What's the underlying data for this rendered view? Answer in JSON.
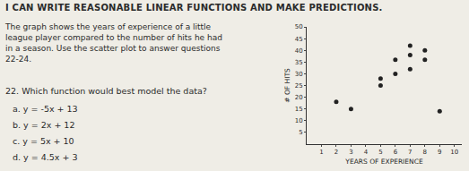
{
  "header": {
    "title": "I CAN WRITE REASONABLE LINEAR FUNCTIONS AND MAKE PREDICTIONS."
  },
  "instructions": "The graph shows the years of experience of a little league player compared to the number of hits he had in a season. Use the scatter plot to answer questions 22-24.",
  "question": {
    "text": "22. Which function would best model the data?",
    "options": [
      "a. y = -5x + 13",
      "b. y = 2x + 12",
      "c. y = 5x + 10",
      "d. y = 4.5x + 3"
    ]
  },
  "chart_data": {
    "type": "scatter",
    "x_label": "YEARS OF EXPERIENCE",
    "y_label": "# OF HITS",
    "x": [
      2,
      3,
      5,
      5,
      6,
      6,
      7,
      7,
      7,
      8,
      8,
      9
    ],
    "values": [
      18,
      15,
      25,
      28,
      30,
      36,
      32,
      38,
      42,
      36,
      40,
      14
    ],
    "xlim": [
      0,
      10.5
    ],
    "ylim": [
      0,
      50
    ],
    "xticks": [
      1,
      2,
      3,
      4,
      5,
      6,
      7,
      8,
      9,
      10
    ],
    "yticks": [
      5,
      10,
      15,
      20,
      25,
      30,
      35,
      40,
      45,
      50
    ],
    "grid": false,
    "color": "#222222",
    "marker": "circle"
  }
}
